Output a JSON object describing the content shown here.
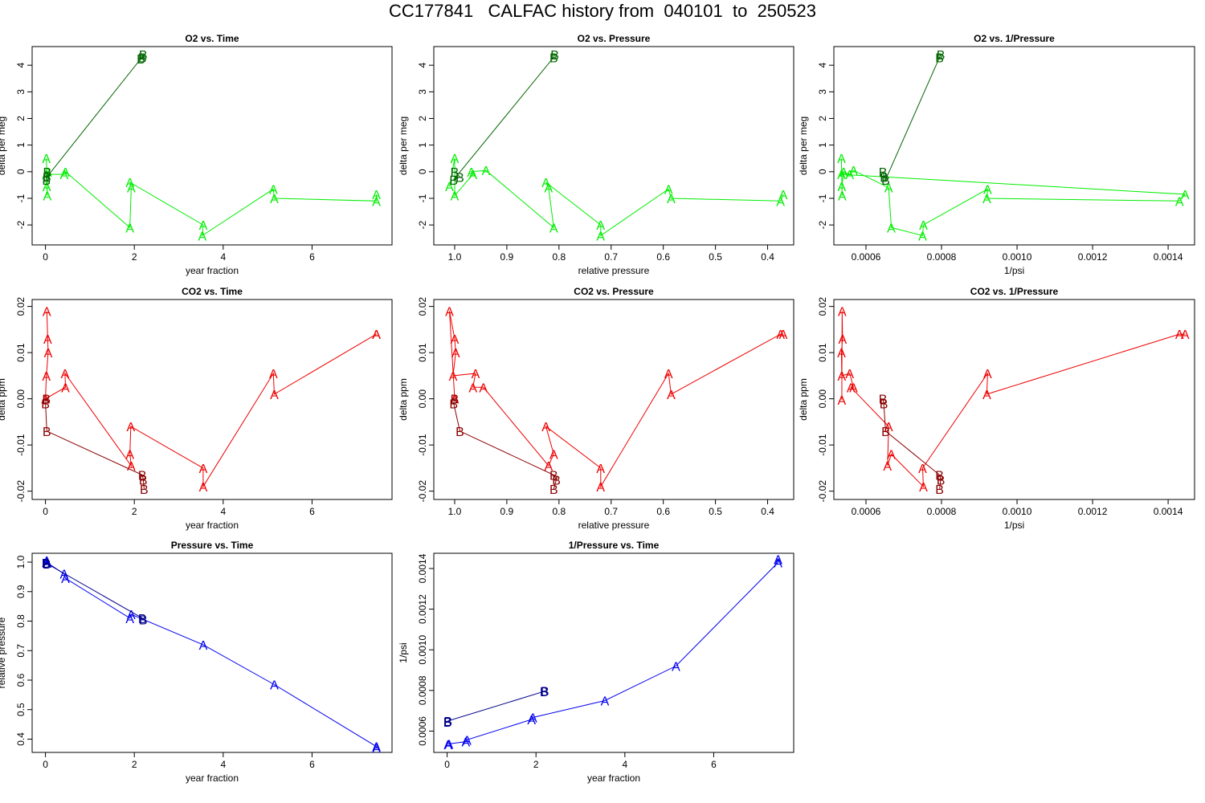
{
  "title": "CC177841   CALFAC history from  040101  to  250523",
  "colors": {
    "o2_A": "#00ee00",
    "o2_B": "#006400",
    "co2_A": "#ee0000",
    "co2_B": "#8b0000",
    "p_A": "#0000ee",
    "p_B": "#00008b",
    "axis": "#000000"
  },
  "chart_data": [
    {
      "id": "o2-time",
      "type": "line",
      "title": "O2 vs. Time",
      "xlabel": "year fraction",
      "ylabel": "delta per meg",
      "xlim": [
        -0.3,
        7.8
      ],
      "ylim": [
        -2.75,
        4.7
      ],
      "xticks": [
        0,
        2,
        4,
        6
      ],
      "xticklabels": [
        "0",
        "2",
        "4",
        "6"
      ],
      "yticks": [
        -2,
        -1,
        0,
        1,
        2,
        3,
        4
      ],
      "yticklabels": [
        "-2",
        "-1",
        "0",
        "1",
        "2",
        "3",
        "4"
      ],
      "palette": "o2",
      "series": [
        {
          "name": "A",
          "marker": "A",
          "color_key": "o2_A",
          "x": [
            0.02,
            0.04,
            0.03,
            0.05,
            0.02,
            0.42,
            0.45,
            1.9,
            1.93,
            1.9,
            3.55,
            3.53,
            5.13,
            5.15,
            7.45,
            7.45
          ],
          "y": [
            0.5,
            -0.9,
            -0.55,
            0.0,
            -0.1,
            -0.1,
            0.0,
            -2.1,
            -0.6,
            -0.4,
            -2.0,
            -2.4,
            -0.65,
            -1.0,
            -1.1,
            -0.85
          ]
        },
        {
          "name": "B",
          "marker": "B",
          "color_key": "o2_B",
          "x": [
            0.02,
            0.04,
            0.03,
            2.15,
            2.2,
            2.18
          ],
          "y": [
            -0.3,
            0.0,
            -0.2,
            4.25,
            4.4,
            4.3
          ]
        }
      ]
    },
    {
      "id": "o2-pressure",
      "type": "line",
      "title": "O2 vs. Pressure",
      "xlabel": "relative pressure",
      "ylabel": "delta per meg",
      "xlim": [
        1.04,
        0.35
      ],
      "ylim": [
        -2.75,
        4.7
      ],
      "xticks": [
        1.0,
        0.9,
        0.8,
        0.7,
        0.6,
        0.5,
        0.4
      ],
      "xticklabels": [
        "1.0",
        "0.9",
        "0.8",
        "0.7",
        "0.6",
        "0.5",
        "0.4"
      ],
      "yticks": [
        -2,
        -1,
        0,
        1,
        2,
        3,
        4
      ],
      "yticklabels": [
        "-2",
        "-1",
        "0",
        "1",
        "2",
        "3",
        "4"
      ],
      "palette": "o2",
      "series": [
        {
          "name": "A",
          "marker": "A",
          "color_key": "o2_A",
          "x": [
            1.01,
            1.0,
            1.0,
            0.965,
            0.968,
            0.94,
            0.81,
            0.82,
            0.825,
            0.72,
            0.72,
            0.59,
            0.585,
            0.375,
            0.37
          ],
          "y": [
            -0.55,
            0.5,
            -0.9,
            -0.1,
            0.0,
            0.05,
            -2.1,
            -0.6,
            -0.4,
            -2.0,
            -2.4,
            -0.65,
            -1.0,
            -1.1,
            -0.85
          ]
        },
        {
          "name": "B",
          "marker": "B",
          "color_key": "o2_B",
          "x": [
            1.0,
            0.99,
            1.002,
            0.81,
            0.808
          ],
          "y": [
            0.0,
            -0.2,
            -0.3,
            4.3,
            4.4
          ]
        }
      ]
    },
    {
      "id": "o2-invpressure",
      "type": "line",
      "title": "O2 vs. 1/Pressure",
      "xlabel": "1/psi",
      "ylabel": "delta per meg",
      "xlim": [
        0.000515,
        0.00147
      ],
      "ylim": [
        -2.75,
        4.7
      ],
      "xticks": [
        0.0006,
        0.0008,
        0.001,
        0.0012,
        0.0014
      ],
      "xticklabels": [
        "0.0006",
        "0.0008",
        "0.0010",
        "0.0012",
        "0.0014"
      ],
      "yticks": [
        -2,
        -1,
        0,
        1,
        2,
        3,
        4
      ],
      "yticklabels": [
        "-2",
        "-1",
        "0",
        "1",
        "2",
        "3",
        "4"
      ],
      "palette": "o2",
      "series": [
        {
          "name": "A",
          "marker": "A",
          "color_key": "o2_A",
          "x": [
            0.000535,
            0.000537,
            0.000536,
            0.000541,
            0.000557,
            0.000567,
            0.00066,
            0.000667,
            0.00075,
            0.000752,
            0.000922,
            0.00092,
            0.00143,
            0.001445,
            0.000535
          ],
          "y": [
            0.5,
            -0.9,
            -0.55,
            0.0,
            -0.1,
            0.05,
            -0.6,
            -2.1,
            -2.4,
            -2.0,
            -0.65,
            -1.0,
            -1.1,
            -0.85,
            -0.1
          ]
        },
        {
          "name": "B",
          "marker": "B",
          "color_key": "o2_B",
          "x": [
            0.000645,
            0.000648,
            0.000652,
            0.000795,
            0.000798
          ],
          "y": [
            0.0,
            -0.2,
            -0.3,
            4.3,
            4.4
          ]
        }
      ]
    },
    {
      "id": "co2-time",
      "type": "line",
      "title": "CO2 vs. Time",
      "xlabel": "year fraction",
      "ylabel": "delta ppm",
      "xlim": [
        -0.3,
        7.8
      ],
      "ylim": [
        -0.0218,
        0.0215
      ],
      "xticks": [
        0,
        2,
        4,
        6
      ],
      "xticklabels": [
        "0",
        "2",
        "4",
        "6"
      ],
      "yticks": [
        -0.02,
        -0.01,
        0,
        0.01,
        0.02
      ],
      "yticklabels": [
        "-0.02",
        "-0.01",
        "0.00",
        "0.01",
        "0.02"
      ],
      "palette": "co2",
      "series": [
        {
          "name": "A",
          "marker": "A",
          "color_key": "co2_A",
          "x": [
            0.03,
            0.05,
            0.06,
            0.02,
            0.0,
            0.45,
            0.44,
            1.93,
            1.9,
            1.92,
            3.55,
            3.55,
            5.13,
            5.15,
            7.45,
            7.45
          ],
          "y": [
            0.019,
            0.013,
            0.01,
            0.005,
            0.0,
            0.0025,
            0.0055,
            -0.0145,
            -0.012,
            -0.006,
            -0.015,
            -0.019,
            0.0055,
            0.001,
            0.014,
            0.014
          ]
        },
        {
          "name": "B",
          "marker": "B",
          "color_key": "co2_B",
          "x": [
            0.02,
            0.0,
            0.03,
            2.18,
            2.2,
            2.22
          ],
          "y": [
            0.0,
            -0.001,
            -0.007,
            -0.0165,
            -0.0175,
            -0.0195
          ]
        }
      ]
    },
    {
      "id": "co2-pressure",
      "type": "line",
      "title": "CO2 vs. Pressure",
      "xlabel": "relative pressure",
      "ylabel": "delta ppm",
      "xlim": [
        1.04,
        0.35
      ],
      "ylim": [
        -0.0218,
        0.0215
      ],
      "xticks": [
        1.0,
        0.9,
        0.8,
        0.7,
        0.6,
        0.5,
        0.4
      ],
      "xticklabels": [
        "1.0",
        "0.9",
        "0.8",
        "0.7",
        "0.6",
        "0.5",
        "0.4"
      ],
      "yticks": [
        -0.02,
        -0.01,
        0,
        0.01,
        0.02
      ],
      "yticklabels": [
        "-0.02",
        "-0.01",
        "0.00",
        "0.01",
        "0.02"
      ],
      "palette": "co2",
      "series": [
        {
          "name": "A",
          "marker": "A",
          "color_key": "co2_A",
          "x": [
            1.0,
            1.01,
            1.0,
            0.998,
            1.003,
            0.96,
            0.965,
            0.945,
            0.82,
            0.81,
            0.825,
            0.72,
            0.72,
            0.59,
            0.585,
            0.375,
            0.37
          ],
          "y": [
            0.0,
            0.019,
            0.013,
            0.01,
            0.005,
            0.0055,
            0.0025,
            0.0025,
            -0.0145,
            -0.012,
            -0.006,
            -0.015,
            -0.019,
            0.0055,
            0.001,
            0.014,
            0.014
          ]
        },
        {
          "name": "B",
          "marker": "B",
          "color_key": "co2_B",
          "x": [
            1.0,
            1.002,
            0.99,
            0.81,
            0.805,
            0.81
          ],
          "y": [
            0.0,
            -0.001,
            -0.007,
            -0.0165,
            -0.0175,
            -0.0195
          ]
        }
      ]
    },
    {
      "id": "co2-invpressure",
      "type": "line",
      "title": "CO2 vs. 1/Pressure",
      "xlabel": "1/psi",
      "ylabel": "delta ppm",
      "xlim": [
        0.000515,
        0.00147
      ],
      "ylim": [
        -0.0218,
        0.0215
      ],
      "xticks": [
        0.0006,
        0.0008,
        0.001,
        0.0012,
        0.0014
      ],
      "xticklabels": [
        "0.0006",
        "0.0008",
        "0.0010",
        "0.0012",
        "0.0014"
      ],
      "yticks": [
        -0.02,
        -0.01,
        0,
        0.01,
        0.02
      ],
      "yticklabels": [
        "-0.02",
        "-0.01",
        "0.00",
        "0.01",
        "0.02"
      ],
      "palette": "co2",
      "series": [
        {
          "name": "A",
          "marker": "A",
          "color_key": "co2_A",
          "x": [
            0.000536,
            0.000537,
            0.000538,
            0.000535,
            0.000536,
            0.000557,
            0.000567,
            0.00056,
            0.00066,
            0.000657,
            0.000667,
            0.000752,
            0.00075,
            0.000922,
            0.00092,
            0.00143,
            0.001445
          ],
          "y": [
            -0.0002,
            0.019,
            0.013,
            0.01,
            0.005,
            0.0055,
            0.0025,
            0.0025,
            -0.006,
            -0.0145,
            -0.012,
            -0.019,
            -0.015,
            0.0055,
            0.001,
            0.014,
            0.014
          ]
        },
        {
          "name": "B",
          "marker": "B",
          "color_key": "co2_B",
          "x": [
            0.000645,
            0.000647,
            0.000652,
            0.000795,
            0.000798,
            0.000795
          ],
          "y": [
            0.0,
            -0.001,
            -0.007,
            -0.0165,
            -0.0175,
            -0.0195
          ]
        }
      ]
    },
    {
      "id": "pressure-time",
      "type": "line",
      "title": "Pressure vs. Time",
      "xlabel": "year fraction",
      "ylabel": "relative pressure",
      "xlim": [
        -0.3,
        7.8
      ],
      "ylim": [
        0.355,
        1.03
      ],
      "xticks": [
        0,
        2,
        4,
        6
      ],
      "xticklabels": [
        "0",
        "2",
        "4",
        "6"
      ],
      "yticks": [
        0.4,
        0.5,
        0.6,
        0.7,
        0.8,
        0.9,
        1.0
      ],
      "yticklabels": [
        "0.4",
        "0.5",
        "0.6",
        "0.7",
        "0.8",
        "0.9",
        "1.0"
      ],
      "palette": "p",
      "series": [
        {
          "name": "A",
          "marker": "A",
          "color_key": "p_A",
          "x": [
            0.02,
            0.03,
            0.04,
            0.42,
            0.45,
            1.9,
            1.93,
            3.55,
            5.15,
            7.45,
            7.45
          ],
          "y": [
            1.0,
            1.005,
            0.998,
            0.96,
            0.945,
            0.81,
            0.823,
            0.72,
            0.585,
            0.375,
            0.37
          ]
        },
        {
          "name": "B",
          "marker": "B",
          "color_key": "p_B",
          "x": [
            0.01,
            0.03,
            2.18,
            2.2
          ],
          "y": [
            0.998,
            0.995,
            0.81,
            0.805
          ]
        }
      ]
    },
    {
      "id": "invpressure-time",
      "type": "line",
      "title": "1/Pressure vs. Time",
      "xlabel": "year fraction",
      "ylabel": "1/psi",
      "xlim": [
        -0.3,
        7.8
      ],
      "ylim": [
        0.000495,
        0.001475
      ],
      "xticks": [
        0,
        2,
        4,
        6
      ],
      "xticklabels": [
        "0",
        "2",
        "4",
        "6"
      ],
      "yticks": [
        0.0006,
        0.0008,
        0.001,
        0.0012,
        0.0014
      ],
      "yticklabels": [
        "0.0006",
        "0.0008",
        "0.0010",
        "0.0012",
        "0.0014"
      ],
      "palette": "p",
      "series": [
        {
          "name": "A",
          "marker": "A",
          "color_key": "p_A",
          "x": [
            0.02,
            0.04,
            0.42,
            0.45,
            1.9,
            1.93,
            3.55,
            5.15,
            7.45,
            7.45
          ],
          "y": [
            0.000535,
            0.000537,
            0.000548,
            0.000557,
            0.000657,
            0.000667,
            0.00075,
            0.00092,
            0.00143,
            0.001445
          ]
        },
        {
          "name": "B",
          "marker": "B",
          "color_key": "p_B",
          "x": [
            0.01,
            0.02,
            2.18,
            2.2
          ],
          "y": [
            0.000645,
            0.00065,
            0.000795,
            0.000798
          ]
        }
      ]
    }
  ]
}
